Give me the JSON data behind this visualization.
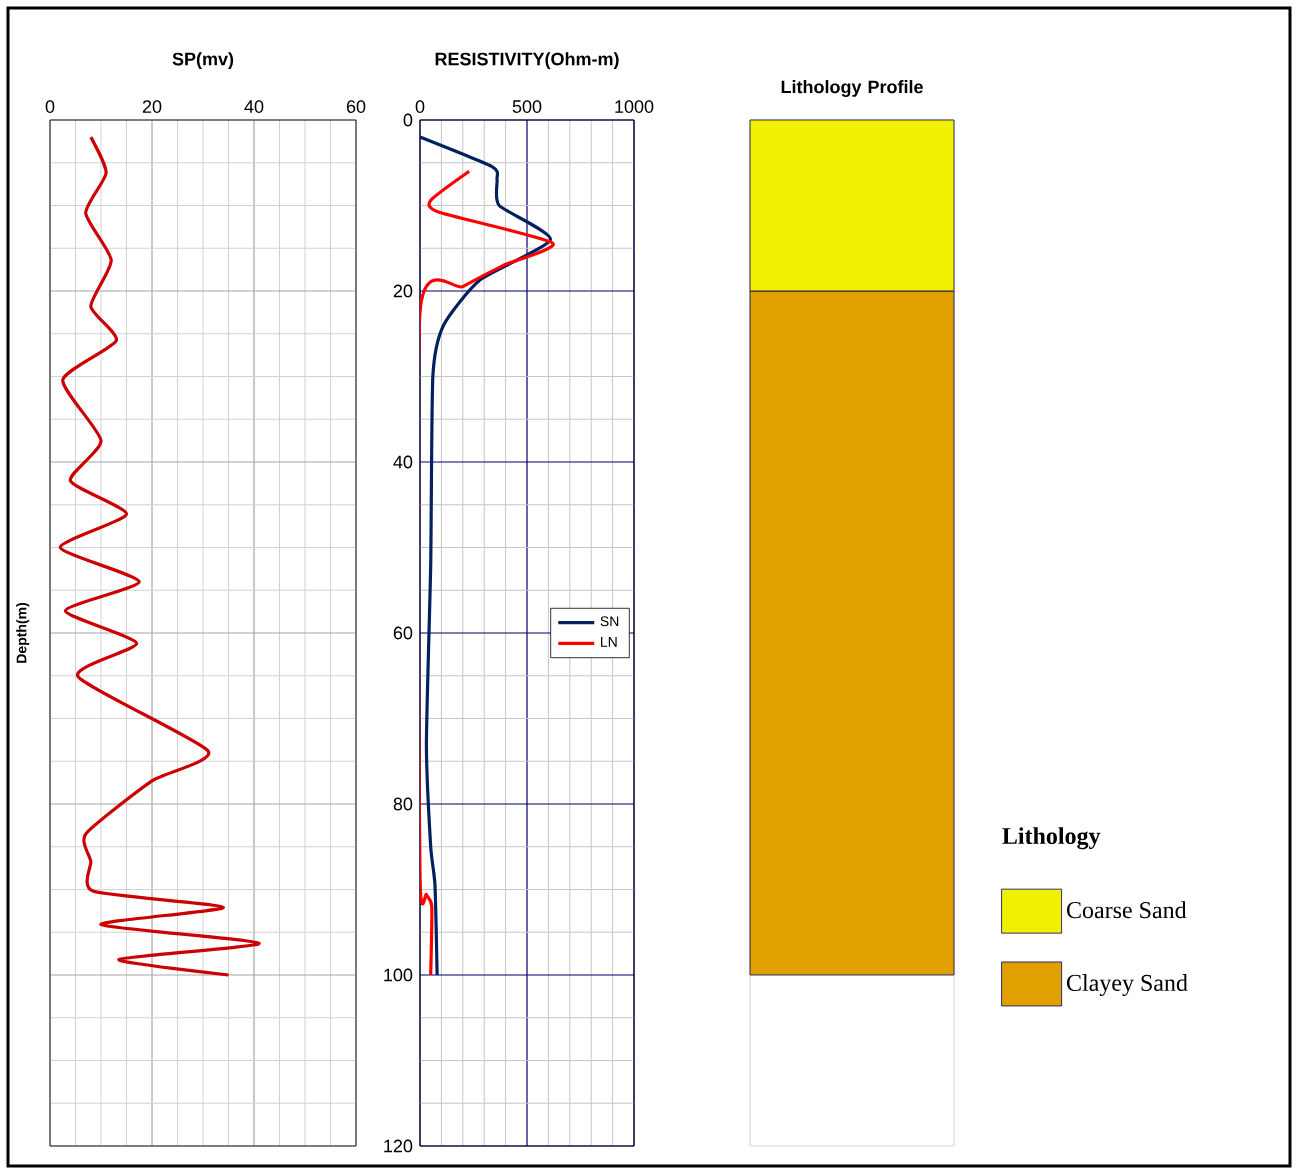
{
  "chart_data": [
    {
      "type": "line",
      "title": "SP(mv)",
      "ylabel": "Depth(m)",
      "xlim": [
        0,
        60
      ],
      "xticks": [
        0,
        20,
        40,
        60
      ],
      "ylim": [
        120,
        0
      ],
      "yticks": [
        0,
        20,
        40,
        60,
        80,
        100,
        120
      ],
      "tick_labels": "x",
      "grid": true,
      "series": [
        {
          "color": "#cc0000",
          "x": [
            8,
            11,
            7,
            12,
            8,
            13,
            2.5,
            10,
            4,
            15,
            2,
            17.5,
            3,
            17,
            5.5,
            31,
            20,
            7,
            8,
            8.5,
            34,
            10,
            41,
            13.5,
            35
          ],
          "values": [
            2,
            6.2,
            10.9,
            16.4,
            21.8,
            25.8,
            30.4,
            37.5,
            42.2,
            46.1,
            50,
            54,
            57.4,
            61.2,
            65.1,
            73.8,
            77.3,
            83.5,
            86.7,
            90.2,
            92.1,
            94.1,
            96.3,
            98.2,
            100
          ]
        }
      ]
    },
    {
      "type": "line",
      "title": "RESISTIVITY(Ohm-m)",
      "xlim": [
        0,
        1000
      ],
      "xticks": [
        0,
        500,
        1000
      ],
      "ylim": [
        120,
        0
      ],
      "yticks": [
        0,
        20,
        40,
        60,
        80,
        100,
        120
      ],
      "grid": true,
      "legend": "right",
      "series": [
        {
          "name": "SN",
          "color": "#002060",
          "x": [
            0,
            340,
            360,
            370,
            610,
            280,
            110,
            60,
            50,
            30,
            50,
            70,
            80
          ],
          "values": [
            2,
            5.5,
            7,
            10,
            14,
            18.7,
            24,
            30,
            52,
            73,
            85,
            89.5,
            100
          ]
        },
        {
          "name": "LN",
          "color": "#ff0000",
          "x": [
            230,
            50,
            90,
            620,
            390,
            200,
            0,
            0,
            30,
            55,
            50
          ],
          "values": [
            6,
            9.4,
            10.8,
            14.4,
            17,
            19.5,
            22.5,
            88,
            90.6,
            92,
            100
          ]
        }
      ]
    },
    {
      "type": "bar",
      "title": "Lithology Profile",
      "stacked": true,
      "categories": [
        null
      ],
      "ylim": [
        120,
        0
      ],
      "tick_labels": false,
      "legend": "right",
      "legend_title": "Lithology",
      "series": [
        {
          "name": "Coarse Sand",
          "color": "#f0f000",
          "values": [
            20
          ]
        },
        {
          "name": "Clayey Sand",
          "color": "#e0a000",
          "values": [
            80
          ]
        }
      ]
    }
  ]
}
